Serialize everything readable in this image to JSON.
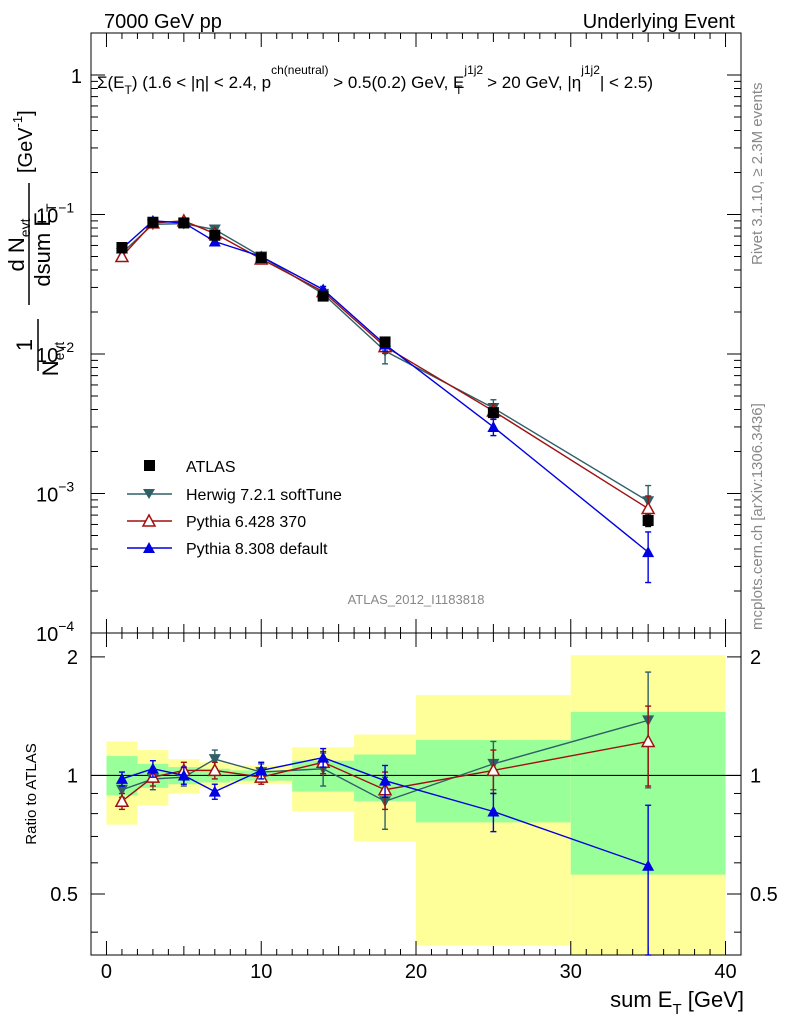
{
  "header": {
    "left": "7000 GeV pp",
    "right": "Underlying Event"
  },
  "side_labels": {
    "rivet": "Rivet 3.1.10, ≥ 2.3M events",
    "mcplots": "mcplots.cern.ch [arXiv:1306.3436]"
  },
  "watermark": "ATLAS_2012_I1183818",
  "colors": {
    "atlas": "#000000",
    "herwig": "#2f6068",
    "pythia6": "#a01010",
    "pythia8": "#0000e0",
    "band_yellow": "#ffff99",
    "band_green": "#99ff99"
  },
  "chart_data": [
    {
      "type": "scatter",
      "panel": "main",
      "title": "Σ(E_T) (1.6 < |η| < 2.4, p_T^ch(neutral) > 0.5(0.2) GeV, E_T^j1j2 > 20 GeV, |η^j1j2| < 2.5)",
      "title_parts": {
        "sigma": "Σ(E",
        "t1": "T",
        "a": ") (1.6 < |η| < 2.4, p",
        "sup_ch": "ch(neutral)",
        "t2": "T",
        "b": " > 0.5(0.2) GeV, E",
        "sup_j": "j1j2",
        "t3": "T",
        "c": " > 20 GeV, |η",
        "sup_j2": "j1j2",
        "d": "| < 2.5)"
      },
      "ylabel_parts": {
        "one": "1",
        "n_evt": "N",
        "evt_sub": "evt",
        "dn": "d N",
        "dn_sub": "evt",
        "dsum": "dsum E",
        "dsum_sub": "T",
        "unit": "[GeV",
        "unit_sup": "-1",
        "unit_close": "]"
      },
      "yscale": "log",
      "ylim": [
        0.0001,
        2
      ],
      "xlim": [
        -1,
        41
      ],
      "y_tick_labels": [
        {
          "v": 1,
          "m": "1",
          "e": ""
        },
        {
          "v": 0.1,
          "m": "10",
          "e": "−1"
        },
        {
          "v": 0.01,
          "m": "10",
          "e": "−2"
        },
        {
          "v": 0.001,
          "m": "10",
          "e": "−3"
        },
        {
          "v": 0.0001,
          "m": "10",
          "e": "−4"
        }
      ],
      "legend_position": "lower-left",
      "series": [
        {
          "name": "ATLAS",
          "marker": "square",
          "color": "#000000",
          "x": [
            1,
            3,
            5,
            7,
            10,
            14,
            18,
            25,
            35
          ],
          "y": [
            0.058,
            0.088,
            0.087,
            0.071,
            0.049,
            0.026,
            0.0122,
            0.0038,
            0.00064
          ],
          "yerr": [
            0.003,
            0.003,
            0.003,
            0.002,
            0.002,
            0.001,
            0.0006,
            0.0002,
            6e-05
          ]
        },
        {
          "name": "Herwig 7.2.1 softTune",
          "marker": "triangle-down",
          "color": "#2f6068",
          "x": [
            1,
            3,
            5,
            7,
            10,
            14,
            18,
            25,
            35
          ],
          "y": [
            0.053,
            0.085,
            0.086,
            0.078,
            0.05,
            0.027,
            0.0105,
            0.0041,
            0.00088
          ],
          "yerr": [
            0.0015,
            0.0025,
            0.0025,
            0.002,
            0.0015,
            0.0015,
            0.002,
            0.0006,
            0.00026
          ]
        },
        {
          "name": "Pythia 6.428 370",
          "marker": "triangle-open",
          "color": "#a01010",
          "x": [
            1,
            3,
            5,
            7,
            10,
            14,
            18,
            25,
            35
          ],
          "y": [
            0.05,
            0.087,
            0.09,
            0.073,
            0.048,
            0.028,
            0.0113,
            0.0039,
            0.00078
          ],
          "yerr": [
            0.0015,
            0.0025,
            0.0025,
            0.002,
            0.0015,
            0.0015,
            0.0012,
            0.0005,
            0.00018
          ]
        },
        {
          "name": "Pythia 8.308 default",
          "marker": "triangle-up",
          "color": "#0000e0",
          "x": [
            1,
            3,
            5,
            7,
            10,
            14,
            18,
            25,
            35
          ],
          "y": [
            0.057,
            0.09,
            0.087,
            0.064,
            0.05,
            0.029,
            0.0117,
            0.003,
            0.00038
          ],
          "yerr": [
            0.0015,
            0.0025,
            0.0025,
            0.002,
            0.0015,
            0.0015,
            0.0012,
            0.0004,
            0.00015
          ]
        }
      ]
    },
    {
      "type": "scatter",
      "panel": "ratio",
      "ylabel": "Ratio to ATLAS",
      "xlabel_parts": {
        "main": "sum E",
        "sub": "T",
        "unit": " [GeV]"
      },
      "yscale": "log",
      "ylim": [
        0.35,
        2.3
      ],
      "xlim": [
        -1,
        41
      ],
      "y_tick_labels": [
        {
          "v": 2,
          "label": "2"
        },
        {
          "v": 1,
          "label": "1"
        },
        {
          "v": 0.5,
          "label": "0.5"
        }
      ],
      "x_tick_labels": [
        {
          "v": 0,
          "label": "0"
        },
        {
          "v": 10,
          "label": "10"
        },
        {
          "v": 20,
          "label": "20"
        },
        {
          "v": 30,
          "label": "30"
        },
        {
          "v": 40,
          "label": "40"
        }
      ],
      "bands": [
        {
          "x0": 0,
          "x1": 2,
          "y_lo": 0.75,
          "y_hi": 1.22,
          "g_lo": 0.89,
          "g_hi": 1.12
        },
        {
          "x0": 2,
          "x1": 4,
          "y_lo": 0.84,
          "y_hi": 1.16,
          "g_lo": 0.93,
          "g_hi": 1.07
        },
        {
          "x0": 4,
          "x1": 6,
          "y_lo": 0.9,
          "y_hi": 1.1,
          "g_lo": 0.95,
          "g_hi": 1.05
        },
        {
          "x0": 6,
          "x1": 8,
          "y_lo": 0.93,
          "y_hi": 1.08,
          "g_lo": 0.96,
          "g_hi": 1.04
        },
        {
          "x0": 8,
          "x1": 12,
          "y_lo": 0.95,
          "y_hi": 1.06,
          "g_lo": 0.97,
          "g_hi": 1.03
        },
        {
          "x0": 12,
          "x1": 16,
          "y_lo": 0.81,
          "y_hi": 1.18,
          "g_lo": 0.91,
          "g_hi": 1.09
        },
        {
          "x0": 16,
          "x1": 20,
          "y_lo": 0.68,
          "y_hi": 1.27,
          "g_lo": 0.86,
          "g_hi": 1.13
        },
        {
          "x0": 20,
          "x1": 30,
          "y_lo": 0.37,
          "y_hi": 1.6,
          "g_lo": 0.76,
          "g_hi": 1.23
        },
        {
          "x0": 30,
          "x1": 40,
          "y_lo": 0.35,
          "y_hi": 2.02,
          "g_lo": 0.56,
          "g_hi": 1.45
        }
      ],
      "series": [
        {
          "name": "Herwig 7.2.1 softTune",
          "marker": "triangle-down",
          "color": "#2f6068",
          "x": [
            1,
            3,
            5,
            7,
            10,
            14,
            18,
            25,
            35
          ],
          "y": [
            0.92,
            0.98,
            0.99,
            1.1,
            1.02,
            1.04,
            0.86,
            1.07,
            1.38
          ],
          "yerr": [
            0.04,
            0.06,
            0.05,
            0.06,
            0.05,
            0.1,
            0.13,
            0.15,
            0.45
          ]
        },
        {
          "name": "Pythia 6.428 370",
          "marker": "triangle-open",
          "color": "#a01010",
          "x": [
            1,
            3,
            5,
            7,
            10,
            14,
            18,
            25,
            35
          ],
          "y": [
            0.86,
            0.99,
            1.03,
            1.03,
            0.99,
            1.08,
            0.92,
            1.03,
            1.22
          ],
          "yerr": [
            0.04,
            0.05,
            0.05,
            0.05,
            0.04,
            0.07,
            0.1,
            0.13,
            0.28
          ]
        },
        {
          "name": "Pythia 8.308 default",
          "marker": "triangle-up",
          "color": "#0000e0",
          "x": [
            1,
            3,
            5,
            7,
            10,
            14,
            18,
            25,
            35
          ],
          "y": [
            0.98,
            1.04,
            1.0,
            0.91,
            1.03,
            1.11,
            0.97,
            0.81,
            0.59
          ],
          "yerr": [
            0.04,
            0.05,
            0.05,
            0.04,
            0.05,
            0.06,
            0.09,
            0.09,
            0.25
          ]
        }
      ]
    }
  ]
}
